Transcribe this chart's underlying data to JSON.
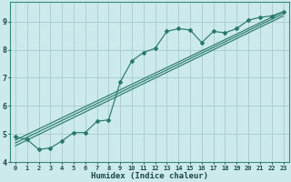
{
  "xlabel": "Humidex (Indice chaleur)",
  "background_color": "#cce9ec",
  "grid_color": "#aacfd5",
  "line_color": "#2a7a6a",
  "xlim": [
    -0.5,
    23.5
  ],
  "ylim": [
    4.0,
    9.7
  ],
  "xticks": [
    0,
    1,
    2,
    3,
    4,
    5,
    6,
    7,
    8,
    9,
    10,
    11,
    12,
    13,
    14,
    15,
    16,
    17,
    18,
    19,
    20,
    21,
    22,
    23
  ],
  "yticks": [
    4,
    5,
    6,
    7,
    8,
    9
  ],
  "curve1_x": [
    0,
    1,
    2,
    3,
    4,
    5,
    6,
    7,
    8,
    9,
    10,
    11,
    12,
    13,
    14,
    15,
    16,
    17,
    18,
    19,
    20,
    21,
    22,
    23
  ],
  "curve1_y": [
    4.9,
    4.8,
    4.45,
    4.5,
    4.75,
    5.05,
    5.05,
    5.45,
    5.5,
    6.85,
    7.6,
    7.9,
    8.05,
    8.65,
    8.75,
    8.7,
    8.25,
    8.65,
    8.6,
    8.75,
    9.05,
    9.15,
    9.2,
    9.35
  ],
  "line1_x": [
    0,
    23
  ],
  "line1_y": [
    4.78,
    9.35
  ],
  "line2_x": [
    0,
    23
  ],
  "line2_y": [
    4.68,
    9.28
  ],
  "line3_x": [
    0,
    23
  ],
  "line3_y": [
    4.58,
    9.2
  ]
}
